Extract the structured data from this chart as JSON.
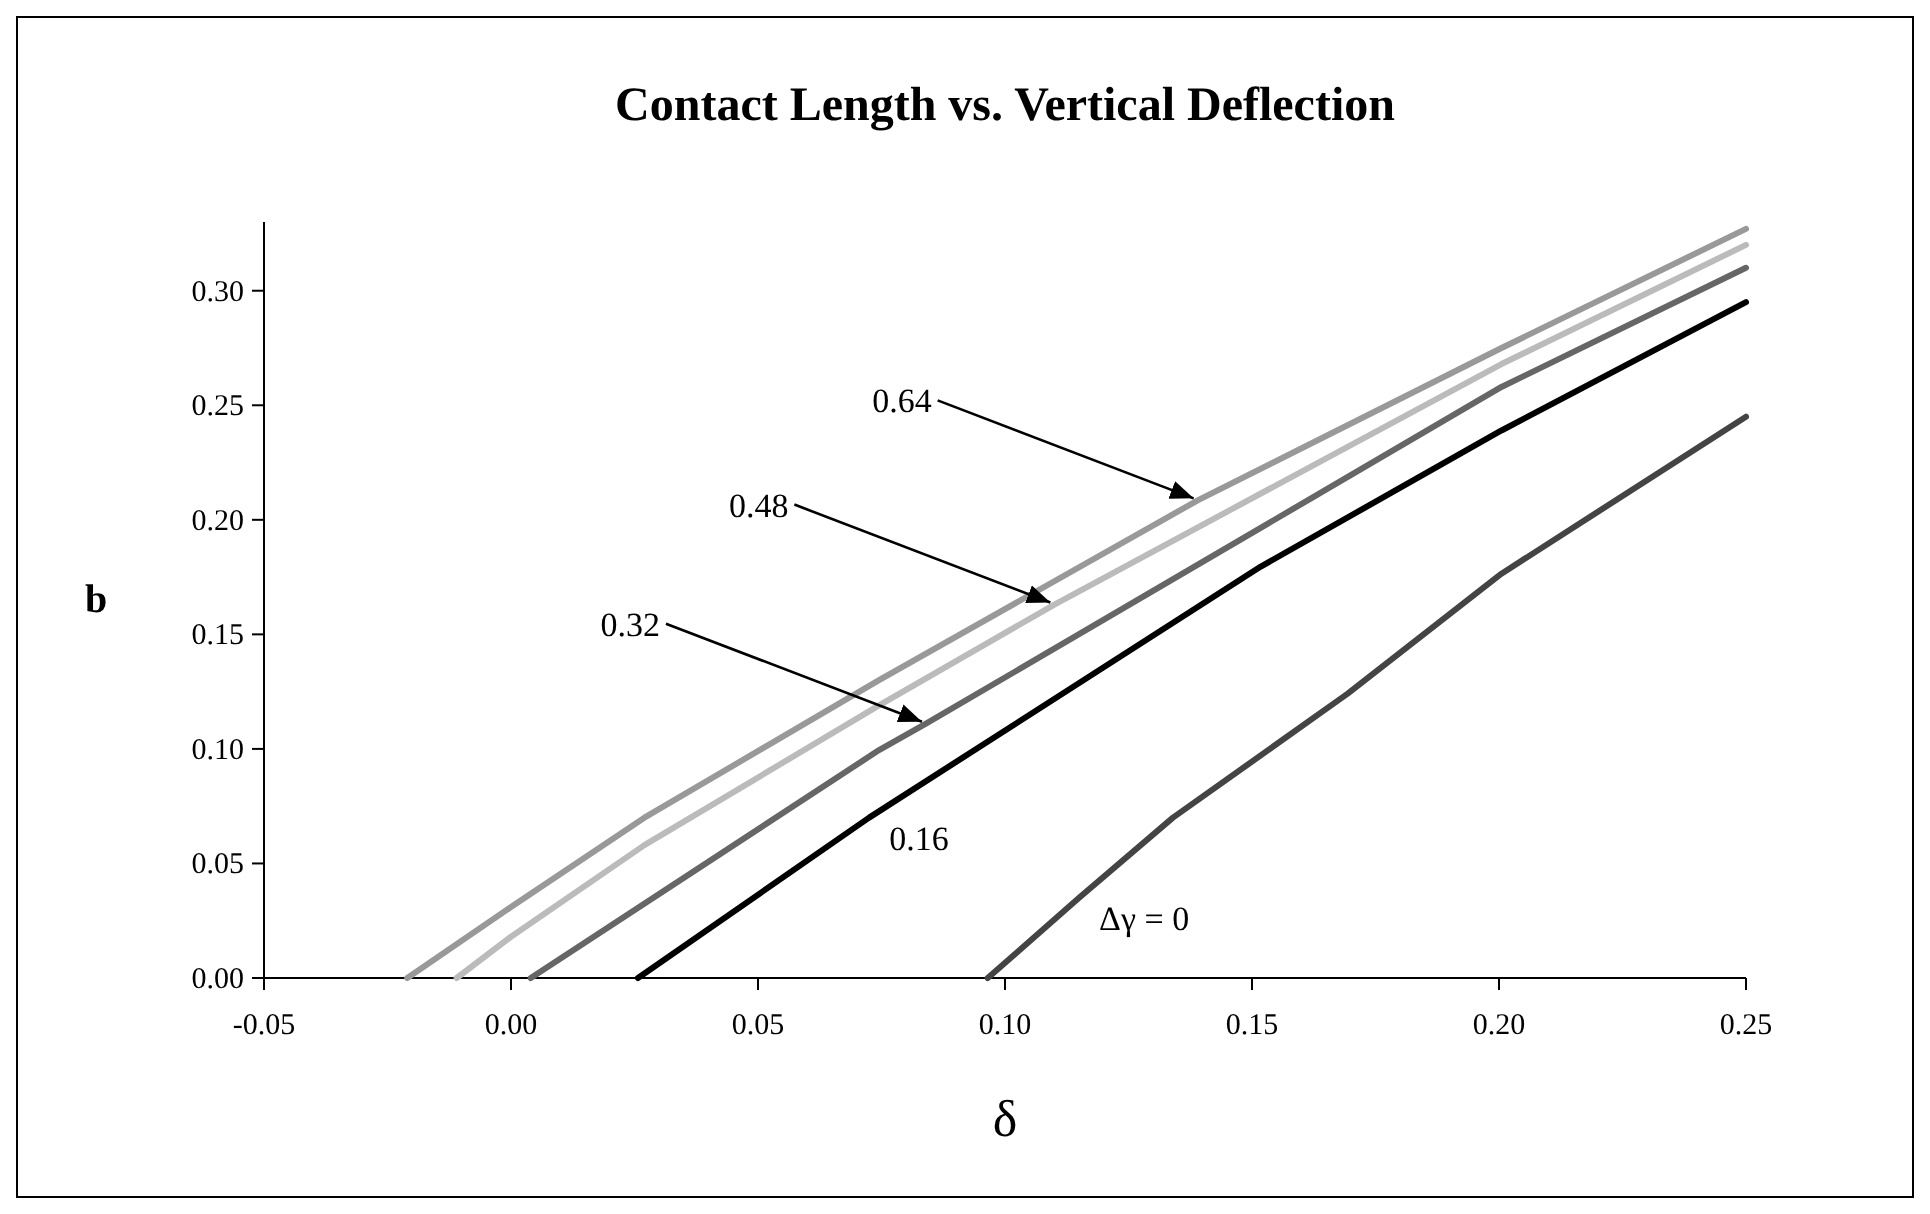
{
  "chart_data": {
    "type": "line",
    "title": "Contact Length vs. Vertical Deflection",
    "xlabel": "δ",
    "ylabel": "b",
    "xlim": [
      -0.05,
      0.25
    ],
    "ylim": [
      0,
      0.33
    ],
    "xticks": [
      {
        "value": -0.05,
        "label": "-0.05"
      },
      {
        "value": 0,
        "label": "0.00"
      },
      {
        "value": 0.05,
        "label": "0.05"
      },
      {
        "value": 0.1,
        "label": "0.10"
      },
      {
        "value": 0.15,
        "label": "0.15"
      },
      {
        "value": 0.2,
        "label": "0.20"
      },
      {
        "value": 0.25,
        "label": "0.25"
      }
    ],
    "yticks": [
      {
        "value": 0,
        "label": "0.00"
      },
      {
        "value": 0.05,
        "label": "0.05"
      },
      {
        "value": 0.1,
        "label": "0.10"
      },
      {
        "value": 0.15,
        "label": "0.15"
      },
      {
        "value": 0.2,
        "label": "0.20"
      },
      {
        "value": 0.25,
        "label": "0.25"
      },
      {
        "value": 0.3,
        "label": "0.30"
      }
    ],
    "series": [
      {
        "color": "#999999",
        "x": [
          -0.021,
          0,
          0.027,
          0.0745,
          0.139,
          0.2005,
          0.25
        ],
        "values": [
          0,
          0.031,
          0.07,
          0.13,
          0.2085,
          0.275,
          0.327
        ]
      },
      {
        "color": "#bbbbbb",
        "x": [
          -0.011,
          0,
          0.027,
          0.0745,
          0.11,
          0.2005,
          0.25
        ],
        "values": [
          0,
          0.018,
          0.058,
          0.119,
          0.163,
          0.268,
          0.32
        ]
      },
      {
        "color": "#666666",
        "x": [
          0.004,
          0.0745,
          0.084,
          0.2005,
          0.25
        ],
        "values": [
          0,
          0.0995,
          0.111,
          0.258,
          0.31
        ]
      },
      {
        "name": "0.16",
        "color": "#000000",
        "x": [
          0.0257,
          0.0725,
          0.1517,
          0.2005,
          0.25
        ],
        "values": [
          0,
          0.07,
          0.1795,
          0.239,
          0.295
        ]
      },
      {
        "name": "Δγ = 0",
        "color": "#444444",
        "x": [
          0.0965,
          0.115,
          0.134,
          0.1693,
          0.2005,
          0.25
        ],
        "values": [
          0,
          0.035,
          0.07,
          0.124,
          0.1765,
          0.245
        ]
      }
    ],
    "annotations": [
      {
        "text": "0.64",
        "x": 0.139,
        "y": 0.2085
      },
      {
        "text": "0.48",
        "x": 0.11,
        "y": 0.163
      },
      {
        "text": "0.32",
        "x": 0.084,
        "y": 0.111
      }
    ]
  }
}
